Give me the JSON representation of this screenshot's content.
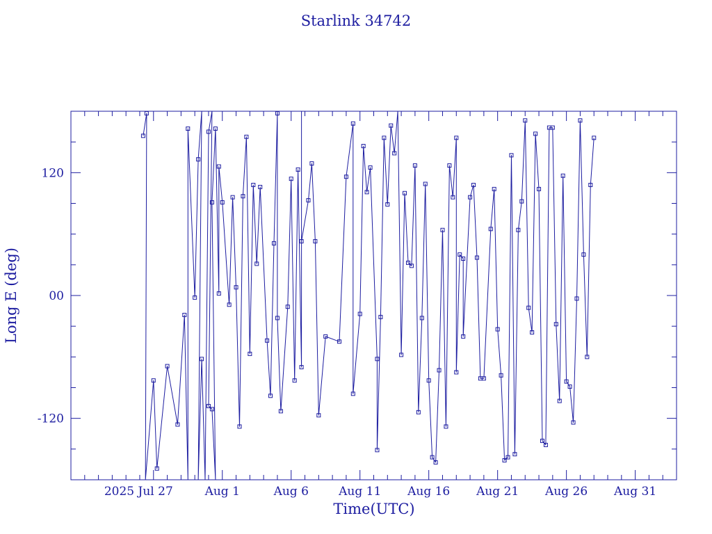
{
  "colors": {
    "ink": "#1c1ca0",
    "background": "#ffffff"
  },
  "chart_data": {
    "type": "line",
    "title": "Starlink 34742",
    "xlabel": "Time(UTC)",
    "ylabel": "Long E (deg)",
    "x_unit": "date (days, 2025)",
    "xlim": [
      "2025-07-21",
      "2025-09-03"
    ],
    "ylim": [
      -180,
      180
    ],
    "x_tick_labels": [
      "2025 Jul 27",
      "Aug  1",
      "Aug  6",
      "Aug 11",
      "Aug 16",
      "Aug 21",
      "Aug 26",
      "Aug 31"
    ],
    "x_tick_dates": [
      "2025-07-27",
      "2025-08-01",
      "2025-08-06",
      "2025-08-11",
      "2025-08-16",
      "2025-08-21",
      "2025-08-26",
      "2025-08-31"
    ],
    "y_tick_labels": [
      "-120",
      "00",
      "120"
    ],
    "y_tick_values": [
      -120,
      0,
      120
    ],
    "marker": "square",
    "grid": false,
    "series": [
      {
        "points": [
          [
            "2025-07-26T06:00",
            156
          ],
          [
            "2025-07-26T12:00",
            178
          ],
          [
            "2025-07-26T10:00",
            -180
          ],
          [
            "2025-07-27T00:00",
            -83
          ],
          [
            "2025-07-27T06:00",
            -169
          ],
          [
            "2025-07-28T00:00",
            -69
          ],
          [
            "2025-07-28T18:00",
            -126
          ],
          [
            "2025-07-29T06:00",
            -19
          ],
          [
            "2025-07-29T12:00",
            -180
          ],
          [
            "2025-07-29T12:00",
            163
          ],
          [
            "2025-07-30T00:00",
            -2
          ],
          [
            "2025-07-30T06:00",
            133
          ],
          [
            "2025-07-30T12:00",
            180
          ],
          [
            "2025-07-30T06:00",
            -180
          ],
          [
            "2025-07-30T12:00",
            -62
          ],
          [
            "2025-07-30T18:00",
            -180
          ],
          [
            "2025-07-31T00:00",
            160
          ],
          [
            "2025-07-31T06:00",
            180
          ],
          [
            "2025-07-31T00:00",
            -108
          ],
          [
            "2025-07-31T06:00",
            -111
          ],
          [
            "2025-07-31T12:00",
            -180
          ],
          [
            "2025-07-31T06:00",
            91
          ],
          [
            "2025-07-31T12:00",
            163
          ],
          [
            "2025-07-31T18:00",
            2
          ],
          [
            "2025-07-31T18:00",
            126
          ],
          [
            "2025-08-01T00:00",
            91
          ],
          [
            "2025-08-01T12:00",
            -9
          ],
          [
            "2025-08-01T18:00",
            96
          ],
          [
            "2025-08-02T00:00",
            8
          ],
          [
            "2025-08-02T06:00",
            -128
          ],
          [
            "2025-08-02T12:00",
            97
          ],
          [
            "2025-08-02T18:00",
            155
          ],
          [
            "2025-08-03T00:00",
            -57
          ],
          [
            "2025-08-03T06:00",
            108
          ],
          [
            "2025-08-03T12:00",
            31
          ],
          [
            "2025-08-03T18:00",
            106
          ],
          [
            "2025-08-04T06:00",
            -44
          ],
          [
            "2025-08-04T12:00",
            -98
          ],
          [
            "2025-08-04T18:00",
            51
          ],
          [
            "2025-08-05T00:00",
            178
          ],
          [
            "2025-08-05T00:00",
            -22
          ],
          [
            "2025-08-05T06:00",
            -113
          ],
          [
            "2025-08-05T18:00",
            -11
          ],
          [
            "2025-08-06T00:00",
            114
          ],
          [
            "2025-08-06T06:00",
            -83
          ],
          [
            "2025-08-06T12:00",
            123
          ],
          [
            "2025-08-06T18:00",
            -70
          ],
          [
            "2025-08-06T18:00",
            180
          ],
          [
            "2025-08-06T18:00",
            53
          ],
          [
            "2025-08-07T06:00",
            93
          ],
          [
            "2025-08-07T12:00",
            129
          ],
          [
            "2025-08-07T18:00",
            53
          ],
          [
            "2025-08-08T00:00",
            -117
          ],
          [
            "2025-08-08T12:00",
            -40
          ],
          [
            "2025-08-09T12:00",
            -45
          ],
          [
            "2025-08-10T00:00",
            116
          ],
          [
            "2025-08-10T12:00",
            168
          ],
          [
            "2025-08-10T12:00",
            -96
          ],
          [
            "2025-08-11T00:00",
            -18
          ],
          [
            "2025-08-11T06:00",
            146
          ],
          [
            "2025-08-11T12:00",
            101
          ],
          [
            "2025-08-11T18:00",
            125
          ],
          [
            "2025-08-12T06:00",
            -62
          ],
          [
            "2025-08-12T06:00",
            -151
          ],
          [
            "2025-08-12T12:00",
            -21
          ],
          [
            "2025-08-12T18:00",
            154
          ],
          [
            "2025-08-13T00:00",
            89
          ],
          [
            "2025-08-13T06:00",
            166
          ],
          [
            "2025-08-13T12:00",
            139
          ],
          [
            "2025-08-13T18:00",
            180
          ],
          [
            "2025-08-14T00:00",
            -58
          ],
          [
            "2025-08-14T06:00",
            100
          ],
          [
            "2025-08-14T12:00",
            32
          ],
          [
            "2025-08-14T18:00",
            29
          ],
          [
            "2025-08-15T00:00",
            127
          ],
          [
            "2025-08-15T06:00",
            -114
          ],
          [
            "2025-08-15T12:00",
            -22
          ],
          [
            "2025-08-15T18:00",
            109
          ],
          [
            "2025-08-16T00:00",
            -83
          ],
          [
            "2025-08-16T06:00",
            -158
          ],
          [
            "2025-08-16T12:00",
            -163
          ],
          [
            "2025-08-16T18:00",
            -73
          ],
          [
            "2025-08-17T00:00",
            64
          ],
          [
            "2025-08-17T06:00",
            -128
          ],
          [
            "2025-08-17T12:00",
            127
          ],
          [
            "2025-08-17T18:00",
            96
          ],
          [
            "2025-08-18T00:00",
            154
          ],
          [
            "2025-08-18T00:00",
            -75
          ],
          [
            "2025-08-18T06:00",
            40
          ],
          [
            "2025-08-18T12:00",
            36
          ],
          [
            "2025-08-18T12:00",
            -40
          ],
          [
            "2025-08-19T00:00",
            96
          ],
          [
            "2025-08-19T06:00",
            108
          ],
          [
            "2025-08-19T12:00",
            37
          ],
          [
            "2025-08-19T18:00",
            -81
          ],
          [
            "2025-08-20T00:00",
            -81
          ],
          [
            "2025-08-20T12:00",
            65
          ],
          [
            "2025-08-20T18:00",
            104
          ],
          [
            "2025-08-21T00:00",
            -33
          ],
          [
            "2025-08-21T06:00",
            -78
          ],
          [
            "2025-08-21T12:00",
            -161
          ],
          [
            "2025-08-21T18:00",
            -158
          ],
          [
            "2025-08-22T00:00",
            137
          ],
          [
            "2025-08-22T06:00",
            -155
          ],
          [
            "2025-08-22T12:00",
            64
          ],
          [
            "2025-08-22T18:00",
            92
          ],
          [
            "2025-08-23T00:00",
            171
          ],
          [
            "2025-08-23T06:00",
            -12
          ],
          [
            "2025-08-23T12:00",
            -36
          ],
          [
            "2025-08-23T18:00",
            158
          ],
          [
            "2025-08-24T00:00",
            104
          ],
          [
            "2025-08-24T06:00",
            -142
          ],
          [
            "2025-08-24T12:00",
            -146
          ],
          [
            "2025-08-24T18:00",
            164
          ],
          [
            "2025-08-25T00:00",
            164
          ],
          [
            "2025-08-25T06:00",
            -28
          ],
          [
            "2025-08-25T12:00",
            -103
          ],
          [
            "2025-08-25T18:00",
            117
          ],
          [
            "2025-08-26T00:00",
            -84
          ],
          [
            "2025-08-26T06:00",
            -89
          ],
          [
            "2025-08-26T12:00",
            -124
          ],
          [
            "2025-08-26T18:00",
            -3
          ],
          [
            "2025-08-27T00:00",
            171
          ],
          [
            "2025-08-27T06:00",
            40
          ],
          [
            "2025-08-27T12:00",
            -60
          ],
          [
            "2025-08-27T18:00",
            108
          ],
          [
            "2025-08-28T00:00",
            154
          ]
        ]
      }
    ]
  }
}
